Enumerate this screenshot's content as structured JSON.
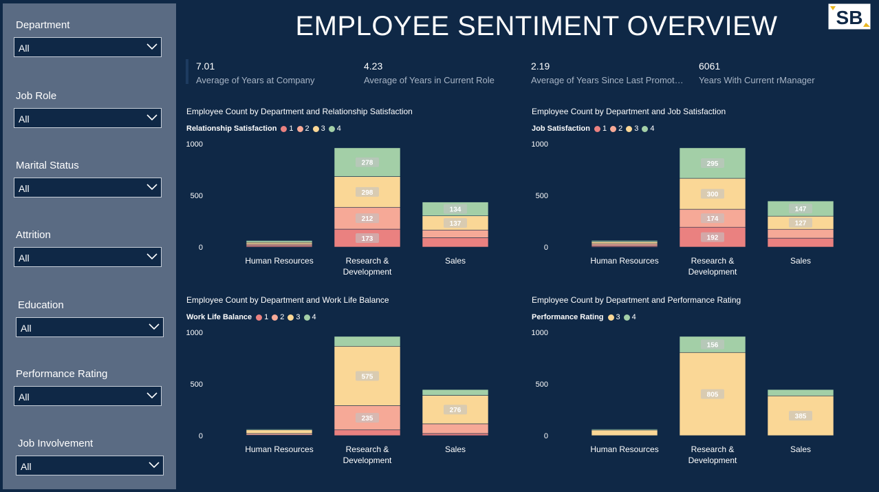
{
  "title": "EMPLOYEE SENTIMENT OVERVIEW",
  "logo_text": "SB",
  "filters": [
    {
      "label": "Department",
      "value": "All"
    },
    {
      "label": "Job Role",
      "value": "All"
    },
    {
      "label": "Marital Status",
      "value": "All"
    },
    {
      "label": "Attrition",
      "value": "All"
    },
    {
      "label": "Education",
      "value": "All"
    },
    {
      "label": "Performance Rating",
      "value": "All"
    },
    {
      "label": "Job Involvement",
      "value": "All"
    }
  ],
  "kpis": [
    {
      "value": "7.01",
      "label": "Average of Years at Company"
    },
    {
      "value": "4.23",
      "label": "Average of Years in Current Role"
    },
    {
      "value": "2.19",
      "label": "Average of Years Since Last Promoti..."
    },
    {
      "value": "6061",
      "label": "Years With Current rManager"
    }
  ],
  "colors": {
    "1": "#ea8180",
    "2": "#f6a997",
    "3": "#fad796",
    "4": "#a3cfa7"
  },
  "chart_data": [
    {
      "type": "bar",
      "stacked": true,
      "title": "Employee Count by Department and Relationship Satisfaction",
      "legend_title": "Relationship Satisfaction",
      "legend": [
        "1",
        "2",
        "3",
        "4"
      ],
      "categories": [
        "Human Resources",
        "Research & Development",
        "Sales"
      ],
      "ylim": [
        0,
        1000
      ],
      "yticks": [
        "0",
        "500",
        "1000"
      ],
      "series": [
        {
          "name": "1",
          "values": [
            13,
            173,
            90
          ],
          "labels": [
            "",
            "173",
            ""
          ]
        },
        {
          "name": "2",
          "values": [
            15,
            212,
            75
          ],
          "labels": [
            "",
            "212",
            ""
          ]
        },
        {
          "name": "3",
          "values": [
            18,
            298,
            137
          ],
          "labels": [
            "",
            "298",
            "137"
          ]
        },
        {
          "name": "4",
          "values": [
            17,
            278,
            134
          ],
          "labels": [
            "",
            "278",
            "134"
          ]
        }
      ]
    },
    {
      "type": "bar",
      "stacked": true,
      "title": "Employee Count by Department and Job Satisfaction",
      "legend_title": "Job Satisfaction",
      "legend": [
        "1",
        "2",
        "3",
        "4"
      ],
      "categories": [
        "Human Resources",
        "Research & Development",
        "Sales"
      ],
      "ylim": [
        0,
        1000
      ],
      "yticks": [
        "0",
        "500",
        "1000"
      ],
      "series": [
        {
          "name": "1",
          "values": [
            11,
            192,
            86
          ],
          "labels": [
            "",
            "192",
            ""
          ]
        },
        {
          "name": "2",
          "values": [
            20,
            174,
            86
          ],
          "labels": [
            "",
            "174",
            ""
          ]
        },
        {
          "name": "3",
          "values": [
            20,
            300,
            127
          ],
          "labels": [
            "",
            "300",
            "127"
          ]
        },
        {
          "name": "4",
          "values": [
            12,
            295,
            147
          ],
          "labels": [
            "",
            "295",
            "147"
          ]
        }
      ]
    },
    {
      "type": "bar",
      "stacked": true,
      "title": "Employee Count by Department and Work Life Balance",
      "legend_title": "Work Life Balance",
      "legend": [
        "1",
        "2",
        "3",
        "4"
      ],
      "categories": [
        "Human Resources",
        "Research & Development",
        "Sales"
      ],
      "ylim": [
        0,
        1000
      ],
      "yticks": [
        "0",
        "500",
        "1000"
      ],
      "series": [
        {
          "name": "1",
          "values": [
            5,
            55,
            20
          ],
          "labels": [
            "",
            "",
            ""
          ]
        },
        {
          "name": "2",
          "values": [
            15,
            235,
            94
          ],
          "labels": [
            "",
            "235",
            ""
          ]
        },
        {
          "name": "3",
          "values": [
            35,
            575,
            276
          ],
          "labels": [
            "",
            "575",
            "276"
          ]
        },
        {
          "name": "4",
          "values": [
            8,
            96,
            56
          ],
          "labels": [
            "",
            "",
            ""
          ]
        }
      ]
    },
    {
      "type": "bar",
      "stacked": true,
      "title": "Employee Count by Department and Performance Rating",
      "legend_title": "Performance Rating",
      "legend": [
        "3",
        "4"
      ],
      "categories": [
        "Human Resources",
        "Research & Development",
        "Sales"
      ],
      "ylim": [
        0,
        1000
      ],
      "yticks": [
        "0",
        "500",
        "1000"
      ],
      "series": [
        {
          "name": "3",
          "values": [
            54,
            805,
            385
          ],
          "labels": [
            "",
            "805",
            "385"
          ]
        },
        {
          "name": "4",
          "values": [
            9,
            156,
            61
          ],
          "labels": [
            "",
            "156",
            ""
          ]
        }
      ]
    }
  ]
}
